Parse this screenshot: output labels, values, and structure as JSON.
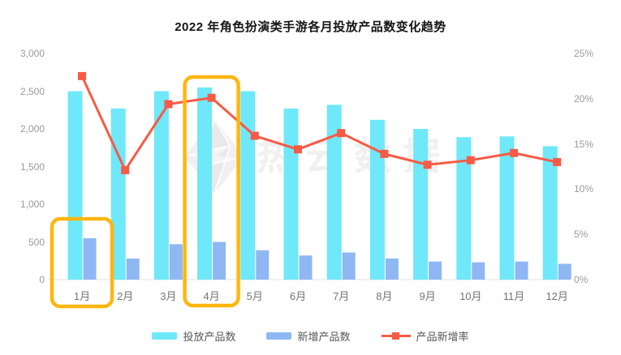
{
  "title": "2022 年角色扮演类手游各月投放产品数变化趋势",
  "watermark": {
    "text": "热云数据",
    "logo": "gem-logo"
  },
  "legend": {
    "position": "bottom"
  },
  "chart_data": {
    "type": "bar",
    "subtype": "combo-bar-line-dual-axis",
    "title": "2022 年角色扮演类手游各月投放产品数变化趋势",
    "categories": [
      "1月",
      "2月",
      "3月",
      "4月",
      "5月",
      "6月",
      "7月",
      "8月",
      "9月",
      "10月",
      "11月",
      "12月"
    ],
    "series": [
      {
        "name": "投放产品数",
        "type": "bar",
        "axis": "left",
        "color": "#6FE8FA",
        "values": [
          2500,
          2270,
          2500,
          2550,
          2500,
          2270,
          2320,
          2120,
          2000,
          1890,
          1900,
          1770
        ]
      },
      {
        "name": "新增产品数",
        "type": "bar",
        "axis": "left",
        "color": "#8FB7F3",
        "values": [
          550,
          280,
          470,
          500,
          390,
          320,
          360,
          280,
          240,
          230,
          240,
          210
        ]
      },
      {
        "name": "产品新增率",
        "type": "line",
        "axis": "right",
        "color": "#F75B45",
        "marker": "square",
        "unit": "%",
        "values": [
          22.5,
          12.1,
          19.4,
          20.1,
          15.9,
          14.4,
          16.2,
          13.9,
          12.7,
          13.2,
          14.0,
          13.0
        ]
      }
    ],
    "left_axis": {
      "ticks": [
        "3,000",
        "2,500",
        "2,000",
        "1,500",
        "1,000",
        "500",
        "0"
      ],
      "min": 0,
      "max": 3000
    },
    "right_axis": {
      "ticks": [
        "25%",
        "20%",
        "15%",
        "10%",
        "5%",
        "0%"
      ],
      "min": 0,
      "max": 25
    },
    "grid": false,
    "legend_position": "bottom",
    "annotations": [
      {
        "type": "highlight-box",
        "month": "1月",
        "extent": "lower",
        "color": "#FFB60D"
      },
      {
        "type": "highlight-box",
        "month": "4月",
        "extent": "full",
        "color": "#FFB60D"
      }
    ]
  }
}
